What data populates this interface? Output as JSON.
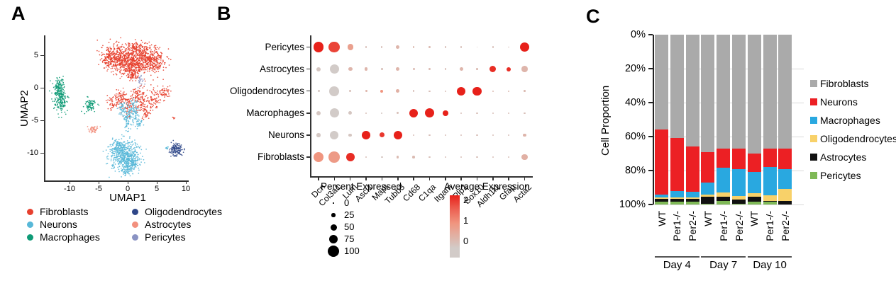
{
  "panels": {
    "a": "A",
    "b": "B",
    "c": "C"
  },
  "chart_data": [
    {
      "id": "umap",
      "type": "scatter",
      "panel": "A",
      "xlabel": "UMAP1",
      "ylabel": "UMAP2",
      "x_ticks": [
        -10,
        -5,
        0,
        5,
        10
      ],
      "y_ticks": [
        5,
        0,
        -5,
        -10
      ],
      "xlim": [
        -14.4,
        10.4
      ],
      "ylim": [
        -14.2,
        8
      ],
      "legend": [
        {
          "label": "Fibroblasts",
          "color": "#e7402e"
        },
        {
          "label": "Neurons",
          "color": "#58b8d8"
        },
        {
          "label": "Macrophages",
          "color": "#0f9b77"
        },
        {
          "label": "Oligodendrocytes",
          "color": "#2f4788"
        },
        {
          "label": "Astrocytes",
          "color": "#f2907e"
        },
        {
          "label": "Pericytes",
          "color": "#8a93c3"
        }
      ],
      "clusters": [
        {
          "cell": "Fibroblasts",
          "cx": -1.8,
          "cy": 4.6,
          "sx": 1.2,
          "sy": 1.0,
          "n": 300
        },
        {
          "cell": "Fibroblasts",
          "cx": 0.4,
          "cy": 3.9,
          "sx": 1.2,
          "sy": 1.1,
          "n": 300
        },
        {
          "cell": "Fibroblasts",
          "cx": 2.9,
          "cy": 4.4,
          "sx": 1.3,
          "sy": 1.1,
          "n": 320
        },
        {
          "cell": "Fibroblasts",
          "cx": 4.9,
          "cy": 4.1,
          "sx": 0.8,
          "sy": 0.9,
          "n": 150
        },
        {
          "cell": "Fibroblasts",
          "cx": -3.3,
          "cy": 4.4,
          "sx": 0.6,
          "sy": 0.7,
          "n": 80
        },
        {
          "cell": "Fibroblasts",
          "cx": 1.4,
          "cy": 6.0,
          "sx": 0.9,
          "sy": 0.5,
          "n": 90
        },
        {
          "cell": "Fibroblasts",
          "cx": 0.9,
          "cy": 2.3,
          "sx": 0.7,
          "sy": 0.6,
          "n": 90
        },
        {
          "cell": "Fibroblasts",
          "cx": -2.7,
          "cy": -2.3,
          "sx": 0.5,
          "sy": 0.6,
          "n": 45
        },
        {
          "cell": "Fibroblasts",
          "cx": -1.2,
          "cy": -1.6,
          "sx": 0.6,
          "sy": 0.7,
          "n": 70
        },
        {
          "cell": "Fibroblasts",
          "cx": 0.3,
          "cy": -2.7,
          "sx": 0.5,
          "sy": 0.9,
          "n": 70
        },
        {
          "cell": "Fibroblasts",
          "cx": 1.5,
          "cy": -1.1,
          "sx": 0.5,
          "sy": 0.7,
          "n": 55
        },
        {
          "cell": "Fibroblasts",
          "cx": 2.5,
          "cy": -2.2,
          "sx": 0.6,
          "sy": 1.0,
          "n": 80
        },
        {
          "cell": "Fibroblasts",
          "cx": 3.3,
          "cy": -3.9,
          "sx": 0.35,
          "sy": 0.5,
          "n": 30
        },
        {
          "cell": "Fibroblasts",
          "cx": 4.4,
          "cy": -1.6,
          "sx": 0.6,
          "sy": 0.9,
          "n": 70
        },
        {
          "cell": "Fibroblasts",
          "cx": 6.4,
          "cy": -0.8,
          "sx": 0.5,
          "sy": 0.5,
          "n": 50
        },
        {
          "cell": "Fibroblasts",
          "cx": 7.9,
          "cy": -4.7,
          "sx": 0.1,
          "sy": 0.1,
          "n": 5
        },
        {
          "cell": "Neurons",
          "cx": -0.6,
          "cy": -10.4,
          "sx": 1.3,
          "sy": 1.1,
          "n": 480
        },
        {
          "cell": "Neurons",
          "cx": 0.7,
          "cy": -11.6,
          "sx": 0.7,
          "sy": 0.7,
          "n": 110
        },
        {
          "cell": "Neurons",
          "cx": -1.7,
          "cy": -9.1,
          "sx": 0.6,
          "sy": 0.6,
          "n": 90
        },
        {
          "cell": "Neurons",
          "cx": -0.1,
          "cy": -12.7,
          "sx": 0.4,
          "sy": 0.4,
          "n": 40
        },
        {
          "cell": "Neurons",
          "cx": 0.0,
          "cy": -4.7,
          "sx": 0.45,
          "sy": 1.0,
          "n": 90
        },
        {
          "cell": "Neurons",
          "cx": 1.1,
          "cy": -3.3,
          "sx": 0.45,
          "sy": 0.8,
          "n": 70
        },
        {
          "cell": "Neurons",
          "cx": -0.9,
          "cy": -3.1,
          "sx": 0.35,
          "sy": 0.5,
          "n": 40
        },
        {
          "cell": "Neurons",
          "cx": 1.9,
          "cy": -5.4,
          "sx": 0.3,
          "sy": 0.5,
          "n": 30
        },
        {
          "cell": "Neurons",
          "cx": 6.8,
          "cy": -9.2,
          "sx": 0.15,
          "sy": 0.15,
          "n": 8
        },
        {
          "cell": "Macrophages",
          "cx": -11.6,
          "cy": -1.7,
          "sx": 0.55,
          "sy": 1.0,
          "n": 200
        },
        {
          "cell": "Macrophages",
          "cx": -11.9,
          "cy": 0.3,
          "sx": 0.45,
          "sy": 0.7,
          "n": 90
        },
        {
          "cell": "Macrophages",
          "cx": -6.4,
          "cy": -2.7,
          "sx": 0.55,
          "sy": 0.5,
          "n": 80
        },
        {
          "cell": "Oligodendrocytes",
          "cx": 8.3,
          "cy": -9.5,
          "sx": 0.5,
          "sy": 0.5,
          "n": 130
        },
        {
          "cell": "Astrocytes",
          "cx": -5.8,
          "cy": -6.5,
          "sx": 0.4,
          "sy": 0.35,
          "n": 50
        },
        {
          "cell": "Pericytes",
          "cx": 2.2,
          "cy": 1.1,
          "sx": 0.25,
          "sy": 0.45,
          "n": 20
        }
      ]
    },
    {
      "id": "marker-dotplot",
      "type": "scatter",
      "panel": "B",
      "rows": [
        "Pericytes",
        "Astrocytes",
        "Oligodendrocytes",
        "Macrophages",
        "Neurons",
        "Fibroblasts"
      ],
      "genes": [
        "Dcn",
        "Col3a1",
        "Lum",
        "Ascl1",
        "Mapt",
        "Tubb3",
        "Cd68",
        "C1qa",
        "Itgam",
        "Plp1",
        "Sox10",
        "Aldh1l1",
        "Gfap",
        "Acta2"
      ],
      "dots": [
        [
          [
            85,
            2
          ],
          [
            95,
            1.7
          ],
          [
            45,
            0.8
          ],
          [
            4,
            0.2
          ],
          [
            4,
            0.2
          ],
          [
            22,
            0.4
          ],
          [
            8,
            0.3
          ],
          [
            8,
            0.3
          ],
          [
            4,
            0.2
          ],
          [
            5,
            0.2
          ],
          [
            3,
            0.2
          ],
          [
            4,
            0.2
          ],
          [
            3,
            0.2
          ],
          [
            80,
            2
          ]
        ],
        [
          [
            30,
            0.1
          ],
          [
            78,
            0
          ],
          [
            28,
            0.4
          ],
          [
            22,
            0.4
          ],
          [
            8,
            0.2
          ],
          [
            22,
            0.4
          ],
          [
            10,
            0.3
          ],
          [
            10,
            0.3
          ],
          [
            6,
            0.2
          ],
          [
            22,
            0.4
          ],
          [
            7,
            0.3
          ],
          [
            50,
            1.9
          ],
          [
            30,
            1.9
          ],
          [
            48,
            0.4
          ]
        ],
        [
          [
            10,
            0.1
          ],
          [
            82,
            0
          ],
          [
            10,
            0.2
          ],
          [
            10,
            0.4
          ],
          [
            18,
            1
          ],
          [
            22,
            0.5
          ],
          [
            8,
            0.2
          ],
          [
            5,
            0.2
          ],
          [
            4,
            0.2
          ],
          [
            72,
            2
          ],
          [
            72,
            2
          ],
          [
            5,
            0.3
          ],
          [
            5,
            0.3
          ],
          [
            7,
            0.3
          ]
        ],
        [
          [
            30,
            0.1
          ],
          [
            78,
            0
          ],
          [
            25,
            0.1
          ],
          [
            4,
            0.2
          ],
          [
            4,
            0.1
          ],
          [
            10,
            0.2
          ],
          [
            72,
            2
          ],
          [
            78,
            2
          ],
          [
            42,
            2
          ],
          [
            5,
            0.2
          ],
          [
            4,
            0.2
          ],
          [
            7,
            0.2
          ],
          [
            4,
            0.2
          ],
          [
            7,
            0.2
          ]
        ],
        [
          [
            25,
            0.05
          ],
          [
            72,
            0
          ],
          [
            20,
            0.1
          ],
          [
            68,
            2
          ],
          [
            38,
            1.8
          ],
          [
            70,
            2
          ],
          [
            5,
            0.2
          ],
          [
            5,
            0.2
          ],
          [
            3,
            0.2
          ],
          [
            7,
            0.2
          ],
          [
            5,
            0.2
          ],
          [
            4,
            0.2
          ],
          [
            4,
            0.2
          ],
          [
            22,
            0.4
          ]
        ],
        [
          [
            88,
            1
          ],
          [
            95,
            0.9
          ],
          [
            70,
            1.9
          ],
          [
            8,
            0.2
          ],
          [
            5,
            0.1
          ],
          [
            12,
            0.3
          ],
          [
            14,
            0.3
          ],
          [
            7,
            0.2
          ],
          [
            5,
            0.2
          ],
          [
            7,
            0.2
          ],
          [
            5,
            0.2
          ],
          [
            7,
            0.2
          ],
          [
            5,
            0.2
          ],
          [
            45,
            0.5
          ]
        ]
      ],
      "size_legend": {
        "title": "Percent Expressed",
        "values": [
          0,
          25,
          50,
          75,
          100
        ]
      },
      "color_legend": {
        "title": "Average Expression",
        "ticks": [
          2,
          1,
          0
        ],
        "high": "#e7211a",
        "mid": "#f0957f",
        "low": "#d2cbc8"
      }
    },
    {
      "id": "cell-proportion",
      "type": "bar",
      "stacked": true,
      "panel": "C",
      "ylabel": "Cell Proportion",
      "y_ticks": [
        "0%",
        "20%",
        "40%",
        "60%",
        "80%",
        "100%"
      ],
      "categories": [
        "WT",
        "Per1-/-",
        "Per2-/-",
        "WT",
        "Per1-/-",
        "Per2-/-",
        "WT",
        "Per1-/-",
        "Per2-/-"
      ],
      "groups": [
        {
          "label": "Day 4",
          "bars": [
            0,
            2
          ]
        },
        {
          "label": "Day 7",
          "bars": [
            3,
            5
          ]
        },
        {
          "label": "Day 10",
          "bars": [
            6,
            8
          ]
        }
      ],
      "series": [
        {
          "name": "Fibroblasts",
          "color": "#aaaaaa",
          "values": [
            56,
            61,
            66,
            69,
            67,
            67,
            70,
            67,
            67
          ]
        },
        {
          "name": "Neurons",
          "color": "#ec2024",
          "values": [
            38,
            31,
            26.5,
            18,
            11.5,
            12,
            11,
            11,
            12
          ]
        },
        {
          "name": "Macrophages",
          "color": "#29a8e0",
          "values": [
            2,
            4,
            3.5,
            7,
            14.5,
            16,
            12.5,
            16.5,
            12
          ]
        },
        {
          "name": "Oligodendrocytes",
          "color": "#f8d169",
          "values": [
            0.5,
            0.5,
            0.5,
            1.5,
            2.5,
            2,
            2,
            3.5,
            7
          ]
        },
        {
          "name": "Astrocytes",
          "color": "#111111",
          "values": [
            2,
            2,
            2,
            4,
            2.5,
            2.5,
            3,
            0.5,
            2
          ]
        },
        {
          "name": "Pericytes",
          "color": "#7fb957",
          "values": [
            1.5,
            1.5,
            1.5,
            0.5,
            2,
            0.5,
            1.5,
            1.5,
            0
          ]
        }
      ]
    }
  ]
}
